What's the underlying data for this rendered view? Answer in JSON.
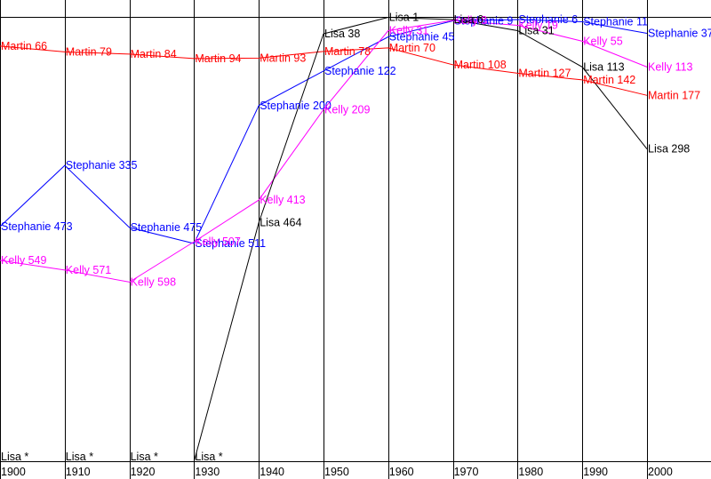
{
  "chart_data": {
    "type": "line",
    "x": [
      1900,
      1910,
      1920,
      1930,
      1940,
      1950,
      1960,
      1970,
      1980,
      1990,
      2000
    ],
    "x_tick_labels": [
      "1900",
      "1910",
      "1920",
      "1930",
      "1940",
      "1950",
      "1960",
      "1970",
      "1980",
      "1990",
      "2000"
    ],
    "y_scale": "rank",
    "grid": true,
    "legend": "none",
    "series": [
      {
        "name": "Martin",
        "color": "#ff0000",
        "values": [
          66,
          79,
          84,
          94,
          93,
          78,
          70,
          108,
          127,
          142,
          177
        ],
        "labels": [
          "Martin 66",
          "Martin 79",
          "Martin 84",
          "Martin 94",
          "Martin 93",
          "Martin 78",
          "Martin 70",
          "Martin 108",
          "Martin 127",
          "Martin 142",
          "Martin 177"
        ]
      },
      {
        "name": "Stephanie",
        "color": "#0000ff",
        "values": [
          473,
          335,
          475,
          511,
          200,
          122,
          45,
          9,
          6,
          11,
          37
        ],
        "labels": [
          "Stephanie 473",
          "Stephanie 335",
          "Stephanie 475",
          "Stephanie 511",
          "Stephanie 200",
          "Stephanie 122",
          "Stephanie 45",
          "Stephanie 9",
          "Stephanie 6",
          "Stephanie 11",
          "Stephanie 37"
        ]
      },
      {
        "name": "Kelly",
        "color": "#ff00ff",
        "values": [
          549,
          571,
          598,
          507,
          413,
          209,
          31,
          8,
          19,
          55,
          113
        ],
        "labels": [
          "Kelly 549",
          "Kelly 571",
          "Kelly 598",
          "Kelly 507",
          "Kelly 413",
          "Kelly 209",
          "Kelly 31",
          "Kelly 8",
          "Kelly 19",
          "Kelly 55",
          "Kelly 113"
        ]
      },
      {
        "name": "Lisa",
        "color": "#000000",
        "values": [
          null,
          null,
          null,
          null,
          464,
          38,
          1,
          6,
          31,
          113,
          298
        ],
        "labels": [
          "Lisa *",
          "Lisa *",
          "Lisa *",
          "Lisa *",
          "Lisa 464",
          "Lisa 38",
          "Lisa 1",
          "Lisa 6",
          "Lisa 31",
          "Lisa 113",
          "Lisa 298"
        ]
      }
    ]
  }
}
